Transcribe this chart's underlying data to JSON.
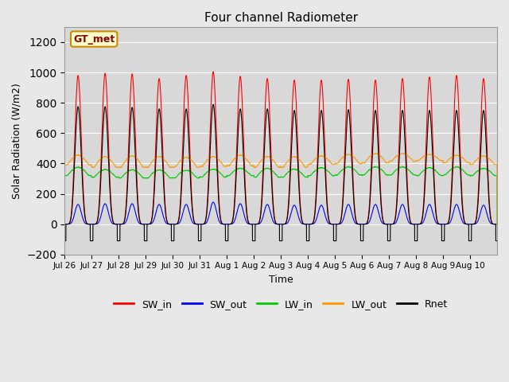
{
  "title": "Four channel Radiometer",
  "xlabel": "Time",
  "ylabel": "Solar Radiation (W/m2)",
  "ylim": [
    -200,
    1300
  ],
  "yticks": [
    -200,
    0,
    200,
    400,
    600,
    800,
    1000,
    1200
  ],
  "fig_bg_color": "#e8e8e8",
  "plot_bg_color": "#d8d8d8",
  "station_label": "GT_met",
  "n_days": 16,
  "day_labels": [
    "Jul 26",
    "Jul 27",
    "Jul 28",
    "Jul 29",
    "Jul 30",
    "Jul 31",
    "Aug 1",
    "Aug 2",
    "Aug 3",
    "Aug 4",
    "Aug 5",
    "Aug 6",
    "Aug 7",
    "Aug 8",
    "Aug 9",
    "Aug 10"
  ],
  "SW_in_peak": [
    980,
    995,
    990,
    960,
    980,
    1005,
    975,
    960,
    950,
    950,
    955,
    950,
    960,
    970,
    980,
    960
  ],
  "SW_out_peak": [
    130,
    135,
    135,
    130,
    130,
    145,
    135,
    130,
    125,
    125,
    130,
    130,
    130,
    130,
    130,
    125
  ],
  "LW_in_base": [
    320,
    310,
    305,
    305,
    305,
    310,
    320,
    310,
    310,
    320,
    325,
    325,
    325,
    320,
    325,
    320
  ],
  "LW_in_peak": [
    375,
    360,
    358,
    358,
    355,
    362,
    368,
    368,
    362,
    372,
    377,
    377,
    377,
    372,
    377,
    368
  ],
  "LW_out_base": [
    390,
    375,
    375,
    375,
    375,
    380,
    385,
    375,
    375,
    395,
    400,
    405,
    415,
    420,
    405,
    395
  ],
  "LW_out_peak": [
    455,
    445,
    450,
    445,
    440,
    445,
    455,
    445,
    445,
    450,
    460,
    465,
    465,
    460,
    455,
    450
  ],
  "Rnet_peak": [
    775,
    775,
    770,
    760,
    760,
    790,
    760,
    760,
    750,
    750,
    755,
    750,
    750,
    750,
    750,
    750
  ],
  "Rnet_night": [
    -110,
    -110,
    -110,
    -110,
    -110,
    -110,
    -110,
    -110,
    -110,
    -110,
    -110,
    -110,
    -110,
    -110,
    -110,
    -110
  ],
  "colors": {
    "SW_in": "#ff0000",
    "SW_out": "#0000ff",
    "LW_in": "#00cc00",
    "LW_out": "#ff9900",
    "Rnet": "#000000"
  }
}
